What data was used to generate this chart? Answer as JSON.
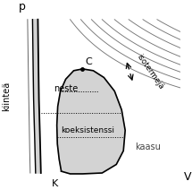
{
  "xlabel": "V",
  "ylabel": "p",
  "label_kiintea": "kiinteä",
  "label_C": "C",
  "label_K": "K",
  "label_neste": "neste",
  "label_kaasu": "kaasu",
  "label_koeksistenssi": "koeksistenssi",
  "label_isotermeja": "isotermejä",
  "bg_color": "#ffffff",
  "dome_fill": "#d3d3d3",
  "solid_fill": "#d3d3d3",
  "line_color": "#000000",
  "fig_width": 2.15,
  "fig_height": 2.12,
  "dpi": 100
}
